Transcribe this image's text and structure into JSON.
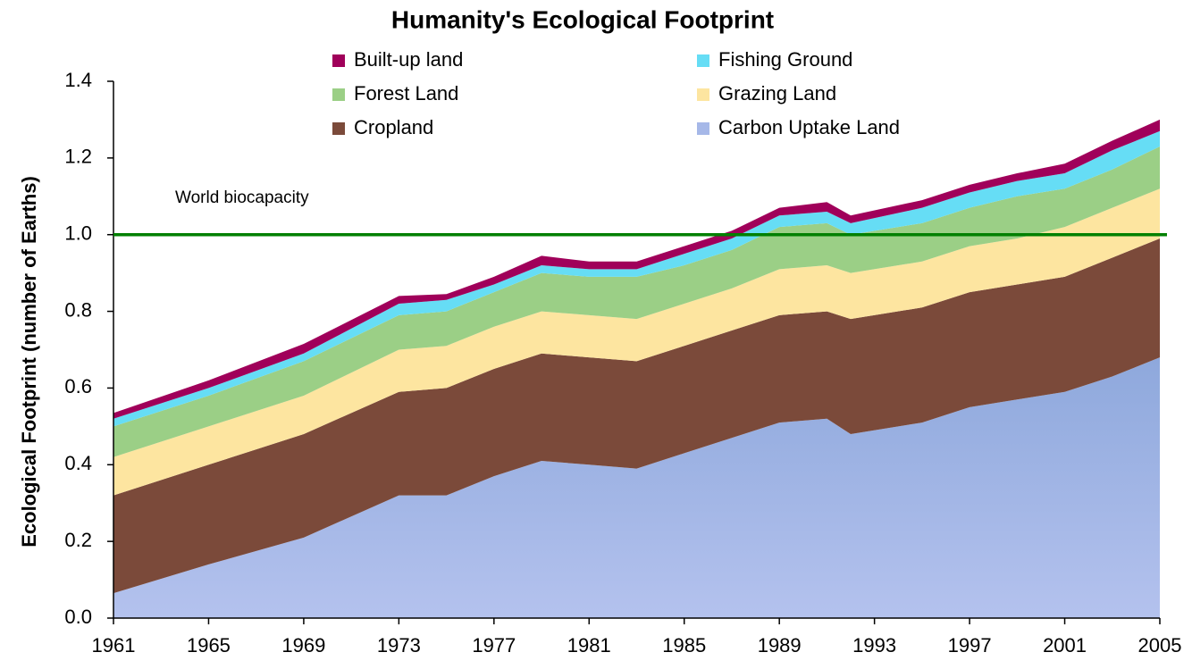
{
  "chart_data": {
    "type": "stacked_area",
    "title": "Humanity's Ecological Footprint",
    "y_label": "Ecological Footprint (number of Earths)",
    "x": [
      1961,
      1965,
      1969,
      1973,
      1975,
      1977,
      1979,
      1981,
      1983,
      1985,
      1987,
      1989,
      1991,
      1992,
      1995,
      1997,
      1999,
      2001,
      2003,
      2005
    ],
    "series": [
      {
        "name": "Carbon Uptake Land",
        "color": "#a6b8e8",
        "values": [
          0.065,
          0.14,
          0.21,
          0.32,
          0.32,
          0.37,
          0.41,
          0.4,
          0.39,
          0.43,
          0.47,
          0.51,
          0.52,
          0.48,
          0.51,
          0.55,
          0.57,
          0.59,
          0.63,
          0.68
        ]
      },
      {
        "name": "Cropland",
        "color": "#7b4a3a",
        "values": [
          0.255,
          0.26,
          0.27,
          0.27,
          0.28,
          0.28,
          0.28,
          0.28,
          0.28,
          0.28,
          0.28,
          0.28,
          0.28,
          0.3,
          0.3,
          0.3,
          0.3,
          0.3,
          0.31,
          0.31
        ]
      },
      {
        "name": "Grazing Land",
        "color": "#fde5a0",
        "values": [
          0.1,
          0.1,
          0.1,
          0.11,
          0.11,
          0.11,
          0.11,
          0.11,
          0.11,
          0.11,
          0.11,
          0.12,
          0.12,
          0.12,
          0.12,
          0.12,
          0.12,
          0.13,
          0.13,
          0.13
        ]
      },
      {
        "name": "Forest Land",
        "color": "#9bcf86",
        "values": [
          0.08,
          0.08,
          0.09,
          0.09,
          0.09,
          0.09,
          0.1,
          0.1,
          0.11,
          0.1,
          0.1,
          0.11,
          0.11,
          0.1,
          0.1,
          0.1,
          0.11,
          0.1,
          0.1,
          0.11
        ]
      },
      {
        "name": "Fishing Ground",
        "color": "#66ddf5",
        "values": [
          0.02,
          0.02,
          0.02,
          0.03,
          0.03,
          0.02,
          0.02,
          0.02,
          0.02,
          0.03,
          0.03,
          0.03,
          0.03,
          0.03,
          0.04,
          0.04,
          0.04,
          0.04,
          0.05,
          0.04
        ]
      },
      {
        "name": "Built-up land",
        "color": "#a0005a",
        "values": [
          0.015,
          0.02,
          0.025,
          0.02,
          0.015,
          0.02,
          0.025,
          0.02,
          0.02,
          0.02,
          0.02,
          0.02,
          0.025,
          0.02,
          0.02,
          0.02,
          0.02,
          0.025,
          0.025,
          0.03
        ]
      }
    ],
    "reference_line": {
      "value": 1.0,
      "label": "World biocapacity",
      "color": "#008000"
    },
    "xlim": [
      1961,
      2005
    ],
    "xticks": [
      1961,
      1965,
      1969,
      1973,
      1977,
      1981,
      1985,
      1989,
      1993,
      1997,
      2001,
      2005
    ],
    "ylim": [
      0,
      1.4
    ],
    "yticks": [
      {
        "value": 0,
        "label": "0.0"
      },
      0.2,
      0.4,
      0.6,
      0.8,
      {
        "value": 1,
        "label": "1.0"
      },
      1.2,
      1.4
    ]
  }
}
